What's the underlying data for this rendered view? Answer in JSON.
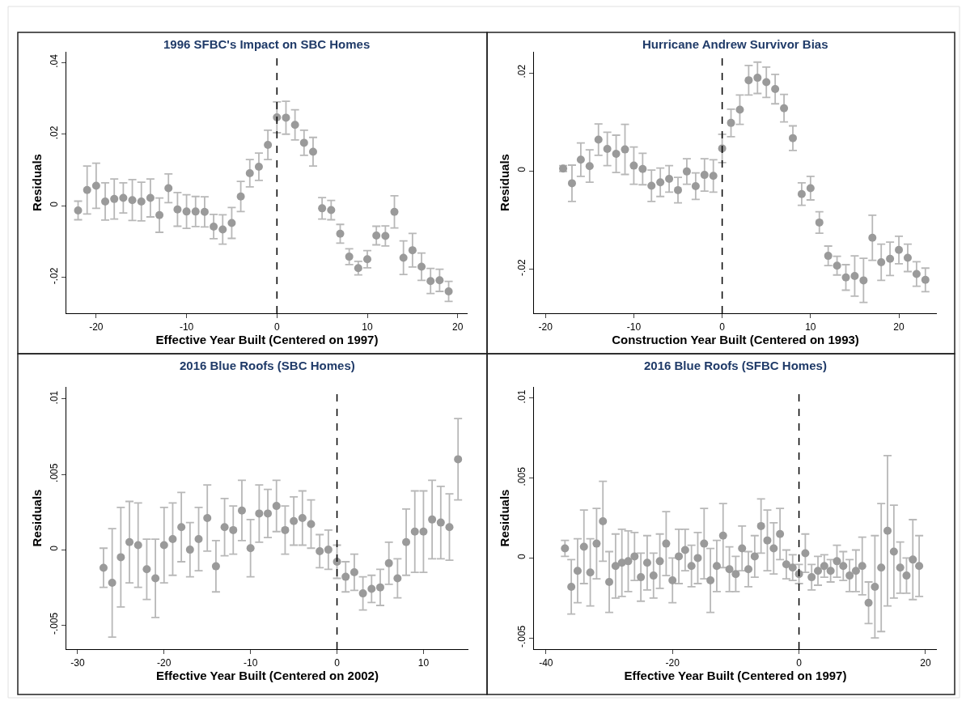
{
  "chart_data": [
    {
      "type": "scatter",
      "title": "1996 SFBC's Impact on SBC Homes",
      "xlabel": "Effective Year Built (Centered on 1997)",
      "ylabel": "Residuals",
      "color": "#9a9a9a",
      "marker": "circle",
      "x": [
        -22,
        -21,
        -20,
        -19,
        -18,
        -17,
        -16,
        -15,
        -14,
        -13,
        -12,
        -11,
        -10,
        -9,
        -8,
        -7,
        -6,
        -5,
        -4,
        -3,
        -2,
        -1,
        0,
        1,
        2,
        3,
        4,
        5,
        6,
        7,
        8,
        9,
        10,
        11,
        12,
        13,
        14,
        15,
        16,
        17,
        18,
        19
      ],
      "values": [
        -0.0013,
        0.0044,
        0.0056,
        0.0012,
        0.0019,
        0.0022,
        0.0016,
        0.0012,
        0.0022,
        -0.0026,
        0.0049,
        -0.001,
        -0.0016,
        -0.0016,
        -0.0017,
        -0.0058,
        -0.0066,
        -0.0048,
        0.0026,
        0.0091,
        0.0109,
        0.017,
        0.0247,
        0.0246,
        0.0226,
        0.0176,
        0.0151,
        -0.0007,
        -0.0012,
        -0.0078,
        -0.0142,
        -0.0174,
        -0.0149,
        -0.0083,
        -0.0084,
        -0.0017,
        -0.0145,
        -0.0124,
        -0.017,
        -0.021,
        -0.0208,
        -0.0239
      ],
      "errors": [
        0.0026,
        0.0067,
        0.0063,
        0.0052,
        0.0056,
        0.0042,
        0.0057,
        0.0054,
        0.0053,
        0.0048,
        0.004,
        0.0047,
        0.0047,
        0.0042,
        0.0042,
        0.0034,
        0.0041,
        0.0043,
        0.0042,
        0.0038,
        0.0038,
        0.0041,
        0.0043,
        0.0046,
        0.0042,
        0.0035,
        0.004,
        0.003,
        0.0027,
        0.0026,
        0.0022,
        0.0019,
        0.0024,
        0.0026,
        0.0028,
        0.0045,
        0.0047,
        0.0047,
        0.0038,
        0.0035,
        0.0031,
        0.0028
      ],
      "xlim": [
        -23.3,
        21.1
      ],
      "ylim": [
        -0.03,
        0.043
      ],
      "xticks": [
        -20,
        -10,
        0,
        10,
        20
      ],
      "yticks": [
        {
          "value": -0.02,
          "label": "-.02"
        },
        {
          "value": 0,
          "label": "0"
        },
        {
          "value": 0.02,
          "label": ".02"
        },
        {
          "value": 0.04,
          "label": ".04"
        }
      ],
      "ref_lines": [
        {
          "axis": "x",
          "value": 0,
          "line_style": "dashed",
          "color": "#000000"
        }
      ]
    },
    {
      "type": "scatter",
      "title": "Hurricane Andrew Survivor Bias",
      "xlabel": "Construction Year Built (Centered on 1993)",
      "ylabel": "Residuals",
      "color": "#9a9a9a",
      "marker": "circle",
      "x": [
        -18,
        -17,
        -16,
        -15,
        -14,
        -13,
        -12,
        -11,
        -10,
        -9,
        -8,
        -7,
        -6,
        -5,
        -4,
        -3,
        -2,
        -1,
        0,
        1,
        2,
        3,
        4,
        5,
        6,
        7,
        8,
        9,
        10,
        11,
        12,
        13,
        14,
        15,
        16,
        17,
        18,
        19,
        20,
        21,
        22,
        23
      ],
      "values": [
        0.0005,
        -0.0025,
        0.0023,
        0.001,
        0.0064,
        0.0045,
        0.0035,
        0.0044,
        0.0011,
        0.0004,
        -0.003,
        -0.0023,
        -0.0016,
        -0.0039,
        -0.0001,
        -0.0031,
        -0.0008,
        -0.001,
        0.0046,
        0.0098,
        0.0125,
        0.0185,
        0.019,
        0.0181,
        0.0167,
        0.0128,
        0.0067,
        -0.0047,
        -0.0035,
        -0.0105,
        -0.0173,
        -0.0193,
        -0.0217,
        -0.0214,
        -0.0223,
        -0.0136,
        -0.0186,
        -0.0179,
        -0.0161,
        -0.0177,
        -0.021,
        -0.0222
      ],
      "errors": [
        0.0006,
        0.0037,
        0.0034,
        0.0033,
        0.0032,
        0.0034,
        0.0038,
        0.0051,
        0.0038,
        0.0032,
        0.0032,
        0.0029,
        0.0027,
        0.0026,
        0.0026,
        0.0027,
        0.0033,
        0.0033,
        0.0029,
        0.0028,
        0.003,
        0.003,
        0.0032,
        0.0031,
        0.003,
        0.0028,
        0.0025,
        0.0023,
        0.0024,
        0.0022,
        0.002,
        0.0019,
        0.0026,
        0.0041,
        0.0045,
        0.0046,
        0.0037,
        0.0034,
        0.0028,
        0.0028,
        0.0025,
        0.0024
      ],
      "xlim": [
        -21.3,
        24.3
      ],
      "ylim": [
        -0.029,
        0.0243
      ],
      "xticks": [
        -20,
        -10,
        0,
        10,
        20
      ],
      "yticks": [
        {
          "value": -0.02,
          "label": "-.02"
        },
        {
          "value": 0,
          "label": "0"
        },
        {
          "value": 0.02,
          "label": ".02"
        }
      ],
      "ref_lines": [
        {
          "axis": "x",
          "value": 0,
          "line_style": "dashed",
          "color": "#000000"
        }
      ]
    },
    {
      "type": "scatter",
      "title": "2016 Blue Roofs (SBC Homes)",
      "xlabel": "Effective Year Built (Centered on 2002)",
      "ylabel": "Residuals",
      "color": "#9a9a9a",
      "marker": "circle",
      "x": [
        -27,
        -26,
        -25,
        -24,
        -23,
        -22,
        -21,
        -20,
        -19,
        -18,
        -17,
        -16,
        -15,
        -14,
        -13,
        -12,
        -11,
        -10,
        -9,
        -8,
        -7,
        -6,
        -5,
        -4,
        -3,
        -2,
        -1,
        0,
        1,
        2,
        3,
        4,
        5,
        6,
        7,
        8,
        9,
        10,
        11,
        12,
        13,
        14
      ],
      "values": [
        -0.0012,
        -0.0022,
        -0.0005,
        0.0005,
        0.0003,
        -0.0013,
        -0.0019,
        0.0003,
        0.0007,
        0.0015,
        0,
        0.0007,
        0.0021,
        -0.0011,
        0.0015,
        0.0013,
        0.0026,
        0.0001,
        0.0024,
        0.0024,
        0.0029,
        0.0013,
        0.0019,
        0.0021,
        0.0017,
        -0.0001,
        0,
        -0.0008,
        -0.0018,
        -0.0015,
        -0.0029,
        -0.0026,
        -0.0025,
        -0.0009,
        -0.0019,
        0.0005,
        0.0012,
        0.0012,
        0.002,
        0.0018,
        0.0015,
        0.006
      ],
      "errors": [
        0.0013,
        0.0036,
        0.0033,
        0.0027,
        0.0028,
        0.002,
        0.0026,
        0.0025,
        0.0024,
        0.0023,
        0.0018,
        0.0021,
        0.0022,
        0.0017,
        0.0019,
        0.0016,
        0.002,
        0.0019,
        0.0019,
        0.0016,
        0.0017,
        0.0016,
        0.0016,
        0.0018,
        0.0016,
        0.0011,
        0.0013,
        0.0011,
        0.001,
        0.0012,
        0.0011,
        0.0009,
        0.0012,
        0.0014,
        0.0013,
        0.0022,
        0.0027,
        0.0027,
        0.0026,
        0.0024,
        0.0022,
        0.0027
      ],
      "xlim": [
        -31.3,
        15.2
      ],
      "ylim": [
        -0.0066,
        0.0108
      ],
      "xticks": [
        -30,
        -20,
        -10,
        0,
        10
      ],
      "yticks": [
        {
          "value": -0.005,
          "label": "-.005"
        },
        {
          "value": 0,
          "label": "0"
        },
        {
          "value": 0.005,
          "label": ".005"
        },
        {
          "value": 0.01,
          "label": ".01"
        }
      ],
      "ref_lines": [
        {
          "axis": "x",
          "value": 0,
          "line_style": "dashed",
          "color": "#000000"
        }
      ]
    },
    {
      "type": "scatter",
      "title": "2016 Blue Roofs (SFBC Homes)",
      "xlabel": "Effective Year Built (Centered on 1997)",
      "ylabel": "Residuals",
      "color": "#9a9a9a",
      "marker": "circle",
      "x": [
        -37,
        -36,
        -35,
        -34,
        -33,
        -32,
        -31,
        -30,
        -29,
        -28,
        -27,
        -26,
        -25,
        -24,
        -23,
        -22,
        -21,
        -20,
        -19,
        -18,
        -17,
        -16,
        -15,
        -14,
        -13,
        -12,
        -11,
        -10,
        -9,
        -8,
        -7,
        -6,
        -5,
        -4,
        -3,
        -2,
        -1,
        0,
        1,
        2,
        3,
        4,
        5,
        6,
        7,
        8,
        9,
        10,
        11,
        12,
        13,
        14,
        15,
        16,
        17,
        18,
        19
      ],
      "values": [
        0.0006,
        -0.0018,
        -0.0008,
        0.0007,
        -0.0009,
        0.0009,
        0.0023,
        -0.0015,
        -0.0005,
        -0.0003,
        -0.0002,
        0.0001,
        -0.0012,
        -0.0003,
        -0.0011,
        -0.0002,
        0.0009,
        -0.0014,
        0.0001,
        0.0005,
        -0.0005,
        0,
        0.0009,
        -0.0014,
        -0.0005,
        0.0014,
        -0.0007,
        -0.001,
        0.0006,
        -0.0007,
        0.0001,
        0.002,
        0.0011,
        0.0006,
        0.0015,
        -0.0004,
        -0.0006,
        -0.001,
        0.0003,
        -0.0012,
        -0.0008,
        -0.0005,
        -0.0008,
        -0.0002,
        -0.0005,
        -0.0011,
        -0.0008,
        -0.0005,
        -0.0028,
        -0.0018,
        -0.0006,
        0.0017,
        0.0004,
        -0.0006,
        -0.0011,
        -0.0001,
        -0.0005
      ],
      "errors": [
        0.0005,
        0.0017,
        0.002,
        0.0023,
        0.0021,
        0.0022,
        0.0025,
        0.0019,
        0.002,
        0.0021,
        0.0019,
        0.0015,
        0.0015,
        0.0017,
        0.0014,
        0.0017,
        0.002,
        0.0014,
        0.0017,
        0.0013,
        0.0013,
        0.0016,
        0.0022,
        0.002,
        0.0016,
        0.002,
        0.0014,
        0.0011,
        0.0014,
        0.0011,
        0.0013,
        0.0017,
        0.0019,
        0.0016,
        0.0016,
        0.0009,
        0.0008,
        0.0006,
        0.0012,
        0.0008,
        0.0009,
        0.0007,
        0.0007,
        0.001,
        0.0009,
        0.001,
        0.0013,
        0.0018,
        0.0013,
        0.0032,
        0.004,
        0.0047,
        0.0029,
        0.0016,
        0.0011,
        0.0025,
        0.0019
      ],
      "xlim": [
        -41.9,
        21.8
      ],
      "ylim": [
        -0.0057,
        0.0107
      ],
      "xticks": [
        -40,
        -20,
        0,
        20
      ],
      "yticks": [
        {
          "value": -0.005,
          "label": "-.005"
        },
        {
          "value": 0,
          "label": "0"
        },
        {
          "value": 0.005,
          "label": ".005"
        },
        {
          "value": 0.01,
          "label": ".01"
        }
      ],
      "ref_lines": [
        {
          "axis": "x",
          "value": 0,
          "line_style": "dashed",
          "color": "#000000"
        }
      ]
    }
  ]
}
